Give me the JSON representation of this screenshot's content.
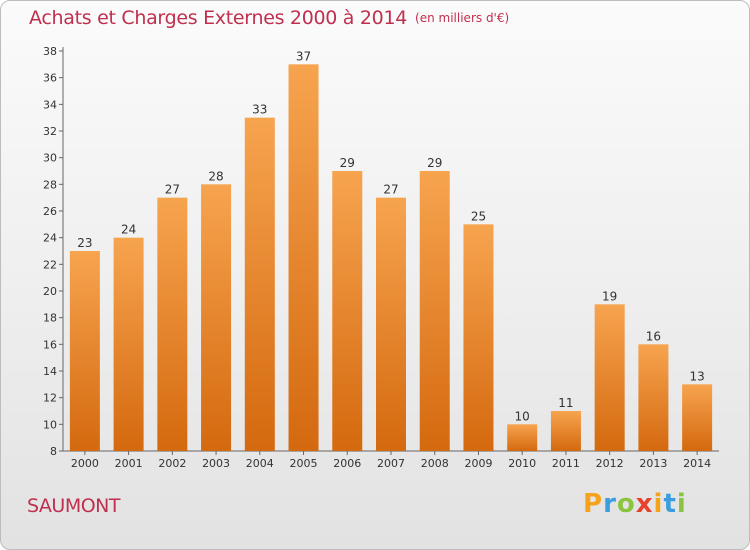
{
  "title": "Achats et Charges Externes 2000 à 2014",
  "unit_note": "(en milliers d'€)",
  "town": "SAUMONT",
  "logo": {
    "letters": [
      "P",
      "r",
      "o",
      "x",
      "i",
      "t",
      "i"
    ],
    "colors": [
      "#f5a31a",
      "#3b9de0",
      "#8bc53f",
      "#e8412c",
      "#f5a31a",
      "#3b9de0",
      "#8bc53f"
    ]
  },
  "colors": {
    "bar_top": "#f7a44f",
    "bar_bottom": "#d4690f",
    "title": "#c0304e"
  },
  "chart_data": {
    "type": "bar",
    "title": "Achats et Charges Externes 2000 à 2014",
    "xlabel": "",
    "ylabel": "",
    "categories": [
      "2000",
      "2001",
      "2002",
      "2003",
      "2004",
      "2005",
      "2006",
      "2007",
      "2008",
      "2009",
      "2010",
      "2011",
      "2012",
      "2013",
      "2014"
    ],
    "values": [
      23,
      24,
      27,
      28,
      33,
      37,
      29,
      27,
      29,
      25,
      10,
      11,
      19,
      16,
      13
    ],
    "ylim": [
      8,
      38
    ],
    "yticks": [
      8,
      10,
      12,
      14,
      16,
      18,
      20,
      22,
      24,
      26,
      28,
      30,
      32,
      34,
      36,
      38
    ],
    "grid": false,
    "legend": "none"
  }
}
